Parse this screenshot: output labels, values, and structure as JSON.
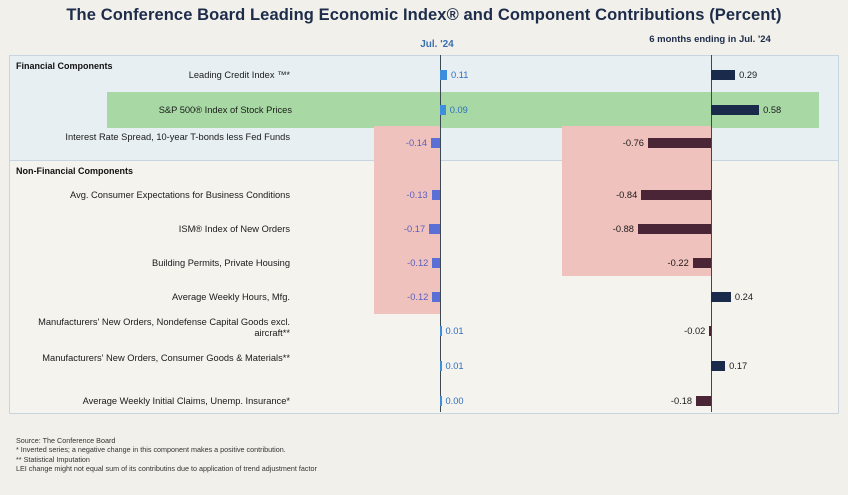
{
  "title": "The Conference Board Leading Economic Index® and Component Contributions (Percent)",
  "column_left_header": "Jul. '24",
  "column_right_header": "6 months ending in Jul. '24",
  "sections": [
    "Financial Components",
    "Non-Financial Components"
  ],
  "chart_data": {
    "type": "bar",
    "orientation": "horizontal",
    "categories": [
      "Leading Credit Index ™*",
      "S&P 500® Index of Stock Prices",
      "Interest Rate Spread, 10-year T-bonds less Fed Funds",
      "Avg. Consumer Expectations for Business Conditions",
      "ISM® Index of New Orders",
      "Building Permits, Private Housing",
      "Average Weekly Hours, Mfg.",
      "Manufacturers' New Orders, Nondefense Capital Goods excl. aircraft**",
      "Manufacturers' New Orders, Consumer Goods & Materials**",
      "Average Weekly Initial Claims, Unemp. Insurance*"
    ],
    "series": [
      {
        "name": "Jul. '24",
        "values": [
          0.11,
          0.09,
          -0.14,
          -0.13,
          -0.17,
          -0.12,
          -0.12,
          0.01,
          0.01,
          0.0
        ],
        "labels": [
          "0.11",
          "0.09",
          "-0.14",
          "-0.13",
          "-0.17",
          "-0.12",
          "-0.12",
          "0.01",
          "0.01",
          "0.00"
        ]
      },
      {
        "name": "6 months ending in Jul. '24",
        "values": [
          0.29,
          0.58,
          -0.76,
          -0.84,
          -0.88,
          -0.22,
          0.24,
          -0.02,
          0.17,
          -0.18
        ],
        "labels": [
          "0.29",
          "0.58",
          "-0.76",
          "-0.84",
          "-0.88",
          "-0.22",
          "0.24",
          "-0.02",
          "0.17",
          "-0.18"
        ]
      }
    ],
    "highlighted": {
      "positive": [
        "S&P 500® Index of Stock Prices"
      ],
      "negative": [
        "Interest Rate Spread, 10-year T-bonds less Fed Funds",
        "Avg. Consumer Expectations for Business Conditions",
        "ISM® Index of New Orders",
        "Building Permits, Private Housing",
        "Average Weekly Hours, Mfg."
      ]
    },
    "colors": {
      "jul_bar": "#3d8fdc",
      "sixmonth_bar": "#1a2a4a",
      "highlight_green": "#a8d9a4",
      "highlight_red": "#f0c2bd"
    }
  },
  "footnotes": [
    "Source:  The Conference Board",
    "*  Inverted series; a negative change in this component makes a positive contribution.",
    "**  Statistical Imputation",
    "LEI change might not equal sum of its contributins due to application of trend adjustment factor"
  ]
}
